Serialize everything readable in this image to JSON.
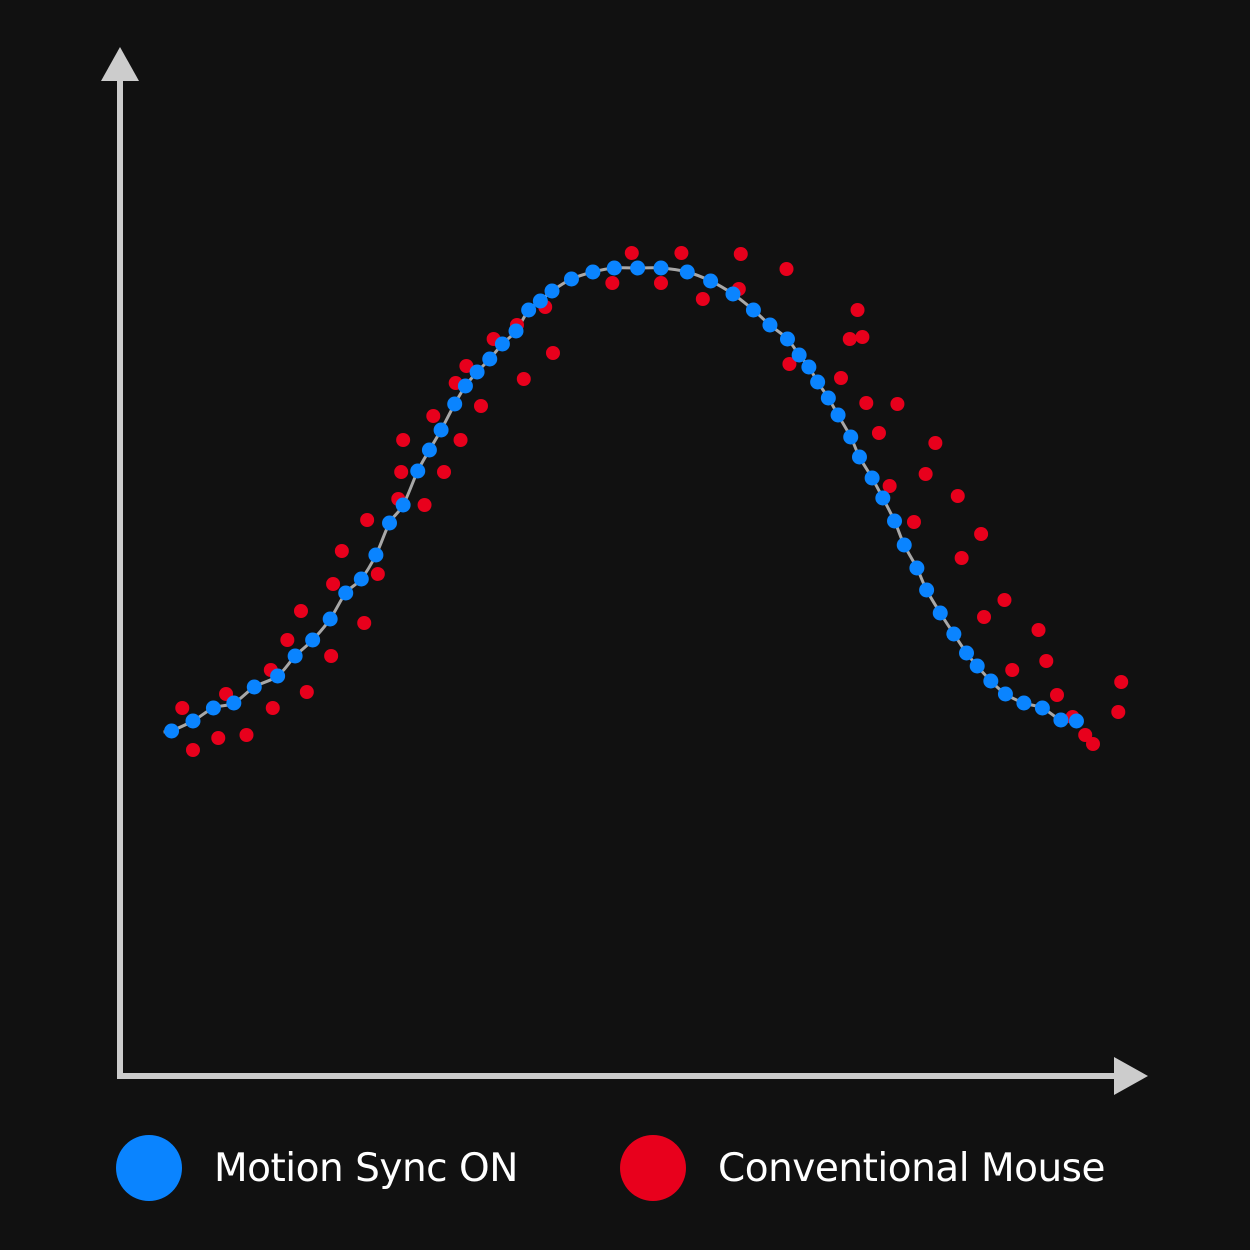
{
  "chart_data": {
    "type": "scatter",
    "title": "",
    "xlabel": "",
    "ylabel": "",
    "xlim": [
      0,
      100
    ],
    "ylim": [
      0,
      100
    ],
    "axes": {
      "ticks": false,
      "arrows": true,
      "color": "#cccccc"
    },
    "grid": false,
    "legend_position": "bottom",
    "colors": {
      "background": "#111111",
      "motion_sync": "#0a84ff",
      "conventional": "#e8001c",
      "trend_line": "#a8a8a8",
      "axis": "#cccccc"
    },
    "series": [
      {
        "name": "Motion Sync ON",
        "color": "#0a84ff",
        "trend_line": true,
        "points": [
          [
            5.3,
            34.5
          ],
          [
            7.5,
            35.5
          ],
          [
            9.6,
            36.8
          ],
          [
            11.7,
            37.3
          ],
          [
            13.8,
            38.9
          ],
          [
            16.2,
            40.0
          ],
          [
            18.0,
            42.0
          ],
          [
            19.8,
            43.6
          ],
          [
            21.6,
            45.7
          ],
          [
            23.2,
            48.3
          ],
          [
            24.8,
            49.7
          ],
          [
            26.3,
            52.1
          ],
          [
            27.7,
            55.3
          ],
          [
            29.1,
            57.1
          ],
          [
            30.6,
            60.5
          ],
          [
            31.8,
            62.6
          ],
          [
            33.0,
            64.6
          ],
          [
            34.4,
            67.2
          ],
          [
            35.5,
            69.0
          ],
          [
            36.7,
            70.4
          ],
          [
            38.0,
            71.7
          ],
          [
            39.3,
            73.2
          ],
          [
            40.7,
            74.5
          ],
          [
            42.0,
            76.6
          ],
          [
            43.2,
            77.5
          ],
          [
            44.4,
            78.5
          ],
          [
            46.4,
            79.7
          ],
          [
            48.6,
            80.4
          ],
          [
            50.8,
            80.8
          ],
          [
            53.2,
            80.8
          ],
          [
            55.6,
            80.8
          ],
          [
            58.3,
            80.4
          ],
          [
            60.7,
            79.5
          ],
          [
            63.0,
            78.2
          ],
          [
            65.1,
            76.6
          ],
          [
            66.8,
            75.1
          ],
          [
            68.6,
            73.7
          ],
          [
            69.8,
            72.1
          ],
          [
            70.8,
            70.9
          ],
          [
            71.7,
            69.4
          ],
          [
            72.8,
            67.8
          ],
          [
            73.8,
            66.1
          ],
          [
            75.1,
            63.9
          ],
          [
            76.0,
            61.9
          ],
          [
            77.3,
            59.8
          ],
          [
            78.4,
            57.8
          ],
          [
            79.6,
            55.5
          ],
          [
            80.6,
            53.1
          ],
          [
            81.9,
            50.8
          ],
          [
            82.9,
            48.6
          ],
          [
            84.3,
            46.3
          ],
          [
            85.7,
            44.2
          ],
          [
            87.0,
            42.3
          ],
          [
            88.1,
            41.0
          ],
          [
            89.5,
            39.5
          ],
          [
            91.0,
            38.2
          ],
          [
            92.9,
            37.3
          ],
          [
            94.8,
            36.8
          ],
          [
            96.7,
            35.6
          ],
          [
            98.3,
            35.5
          ]
        ]
      },
      {
        "name": "Conventional Mouse",
        "color": "#e8001c",
        "trend_line": false,
        "points": [
          [
            6.4,
            36.8
          ],
          [
            7.5,
            32.6
          ],
          [
            10.1,
            33.8
          ],
          [
            10.9,
            38.2
          ],
          [
            13.0,
            34.1
          ],
          [
            15.5,
            40.6
          ],
          [
            15.7,
            36.8
          ],
          [
            17.2,
            43.6
          ],
          [
            18.6,
            46.5
          ],
          [
            19.2,
            38.4
          ],
          [
            21.7,
            42.0
          ],
          [
            21.9,
            49.2
          ],
          [
            22.8,
            52.5
          ],
          [
            25.1,
            45.3
          ],
          [
            25.4,
            55.6
          ],
          [
            26.5,
            50.2
          ],
          [
            28.6,
            57.7
          ],
          [
            28.9,
            60.4
          ],
          [
            29.1,
            63.6
          ],
          [
            31.3,
            57.1
          ],
          [
            32.2,
            66.0
          ],
          [
            33.3,
            60.4
          ],
          [
            34.5,
            69.3
          ],
          [
            35.0,
            63.6
          ],
          [
            35.6,
            71.0
          ],
          [
            37.1,
            67.0
          ],
          [
            38.4,
            73.7
          ],
          [
            40.8,
            75.1
          ],
          [
            41.5,
            69.7
          ],
          [
            43.7,
            76.9
          ],
          [
            44.5,
            72.3
          ],
          [
            50.6,
            79.3
          ],
          [
            52.6,
            82.3
          ],
          [
            55.6,
            79.3
          ],
          [
            57.7,
            82.3
          ],
          [
            59.9,
            77.7
          ],
          [
            63.6,
            78.7
          ],
          [
            63.8,
            82.2
          ],
          [
            68.5,
            80.7
          ],
          [
            68.8,
            71.2
          ],
          [
            74.1,
            69.8
          ],
          [
            75.0,
            73.7
          ],
          [
            75.8,
            76.6
          ],
          [
            76.3,
            73.9
          ],
          [
            76.7,
            67.3
          ],
          [
            78.0,
            64.3
          ],
          [
            79.1,
            59.0
          ],
          [
            79.9,
            67.2
          ],
          [
            81.6,
            55.4
          ],
          [
            82.8,
            60.2
          ],
          [
            83.8,
            63.3
          ],
          [
            86.1,
            58.0
          ],
          [
            86.5,
            51.8
          ],
          [
            88.5,
            54.2
          ],
          [
            88.8,
            45.9
          ],
          [
            90.9,
            47.6
          ],
          [
            91.7,
            40.6
          ],
          [
            94.4,
            44.6
          ],
          [
            95.2,
            41.5
          ],
          [
            96.3,
            38.1
          ],
          [
            97.9,
            35.9
          ],
          [
            99.2,
            34.1
          ],
          [
            100.0,
            33.2
          ],
          [
            102.6,
            36.4
          ],
          [
            102.9,
            39.4
          ]
        ]
      }
    ]
  },
  "legend": {
    "items": [
      {
        "label": "Motion Sync ON",
        "color": "#0a84ff"
      },
      {
        "label": "Conventional Mouse",
        "color": "#e8001c"
      }
    ]
  }
}
